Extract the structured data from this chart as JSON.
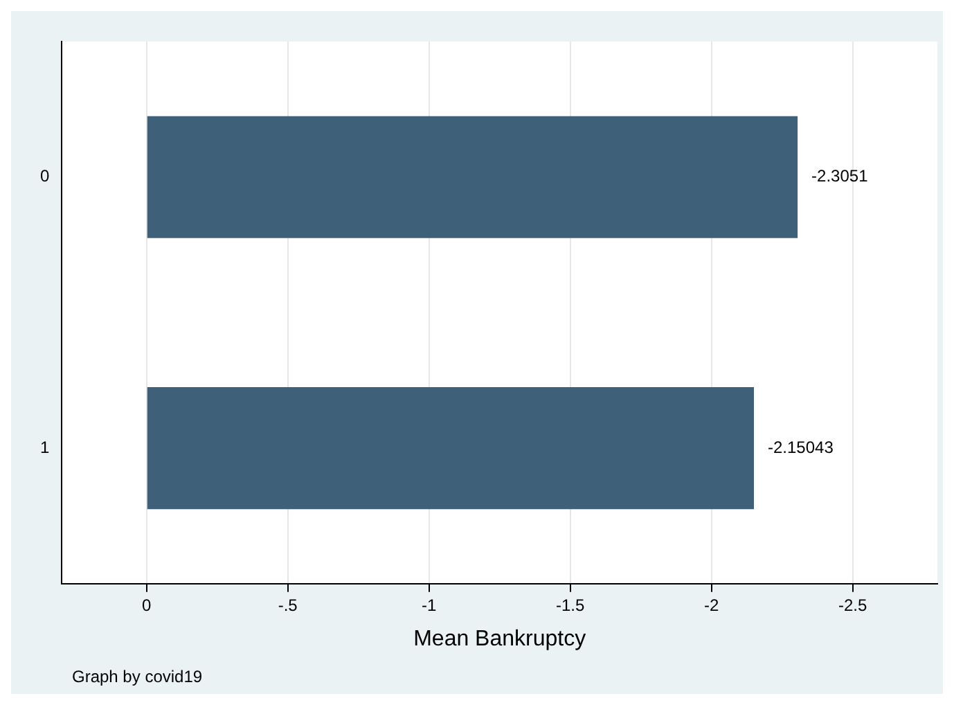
{
  "chart_data": {
    "type": "bar",
    "orientation": "horizontal",
    "categories": [
      "0",
      "1"
    ],
    "values": [
      -2.3051,
      -2.15043
    ],
    "color": "#3e6179",
    "xlabel": "Mean Bankruptcy",
    "xlim": [
      0.3,
      -2.8
    ],
    "xticks": [
      0,
      {
        "value": -0.5,
        "label": "-.5"
      },
      -1,
      -1.5,
      -2,
      -2.5
    ],
    "grid": "x",
    "data_labels": true,
    "annotations": [
      "Graph by covid19"
    ]
  }
}
